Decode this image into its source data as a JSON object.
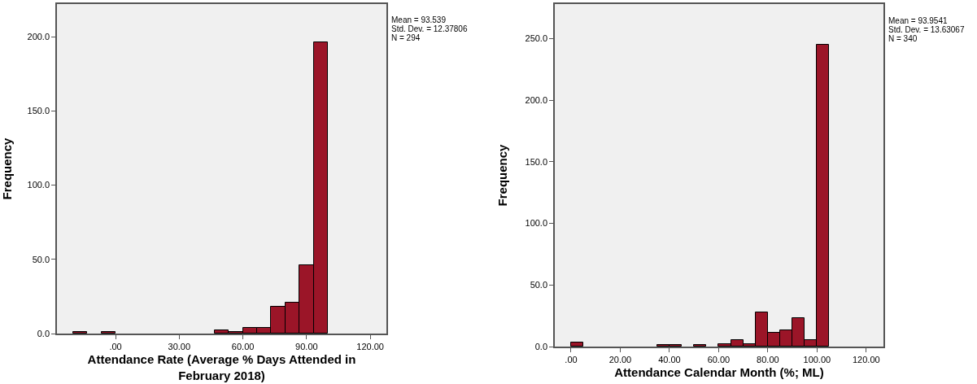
{
  "chart_data": [
    {
      "type": "histogram",
      "xlabel": "Attendance Rate (Average % Days Attended in February 2018)",
      "ylabel": "Frequency",
      "color": "#9b1528",
      "bins": [
        -20,
        -13.333,
        -6.667,
        0,
        6.667,
        13.333,
        20,
        26.667,
        33.333,
        40,
        46.667,
        53.333,
        60,
        66.667,
        73.333,
        80,
        86.667,
        93.333,
        100
      ],
      "values": [
        1,
        0,
        1,
        0,
        0,
        0,
        0,
        0,
        0,
        0,
        2,
        1,
        4,
        4,
        18,
        21,
        46,
        196
      ],
      "xlim": [
        -27.6,
        127.6
      ],
      "ylim": [
        0,
        222
      ],
      "xticks": [
        {
          "value": 0,
          "label": ".00"
        },
        {
          "value": 30,
          "label": "30.00"
        },
        {
          "value": 60,
          "label": "60.00"
        },
        {
          "value": 90,
          "label": "90.00"
        },
        {
          "value": 120,
          "label": "120.00"
        }
      ],
      "yticks": [
        {
          "value": 0,
          "label": "0.0"
        },
        {
          "value": 50,
          "label": "50.0"
        },
        {
          "value": 100,
          "label": "100.0"
        },
        {
          "value": 150,
          "label": "150.0"
        },
        {
          "value": 200,
          "label": "200.0"
        }
      ],
      "annotations": [
        "Mean = 93.539",
        "Std. Dev. = 12.37806",
        "N = 294"
      ],
      "grid": false
    },
    {
      "type": "histogram",
      "xlabel": "Attendance Calendar Month (%; ML)",
      "ylabel": "Frequency",
      "color": "#9b1528",
      "bins": [
        0,
        5,
        10,
        15,
        20,
        25,
        30,
        35,
        40,
        45,
        50,
        55,
        60,
        65,
        70,
        75,
        80,
        85,
        90,
        95,
        100,
        105
      ],
      "values": [
        3,
        0,
        0,
        0,
        0,
        0,
        0,
        1,
        1,
        0,
        1,
        0,
        2,
        5,
        2,
        28,
        11,
        13,
        23,
        5,
        245
      ],
      "xlim": [
        -6.6,
        127
      ],
      "ylim": [
        0,
        278
      ],
      "xticks": [
        {
          "value": 0,
          "label": ".00"
        },
        {
          "value": 20,
          "label": "20.00"
        },
        {
          "value": 40,
          "label": "40.00"
        },
        {
          "value": 60,
          "label": "60.00"
        },
        {
          "value": 80,
          "label": "80.00"
        },
        {
          "value": 100,
          "label": "100.00"
        },
        {
          "value": 120,
          "label": "120.00"
        }
      ],
      "yticks": [
        {
          "value": 0,
          "label": "0.0"
        },
        {
          "value": 50,
          "label": "50.0"
        },
        {
          "value": 100,
          "label": "100.0"
        },
        {
          "value": 150,
          "label": "150.0"
        },
        {
          "value": 200,
          "label": "200.0"
        },
        {
          "value": 250,
          "label": "250.0"
        }
      ],
      "annotations": [
        "Mean = 93.9541",
        "Std. Dev. = 13.63067",
        "N = 340"
      ],
      "grid": false
    }
  ]
}
